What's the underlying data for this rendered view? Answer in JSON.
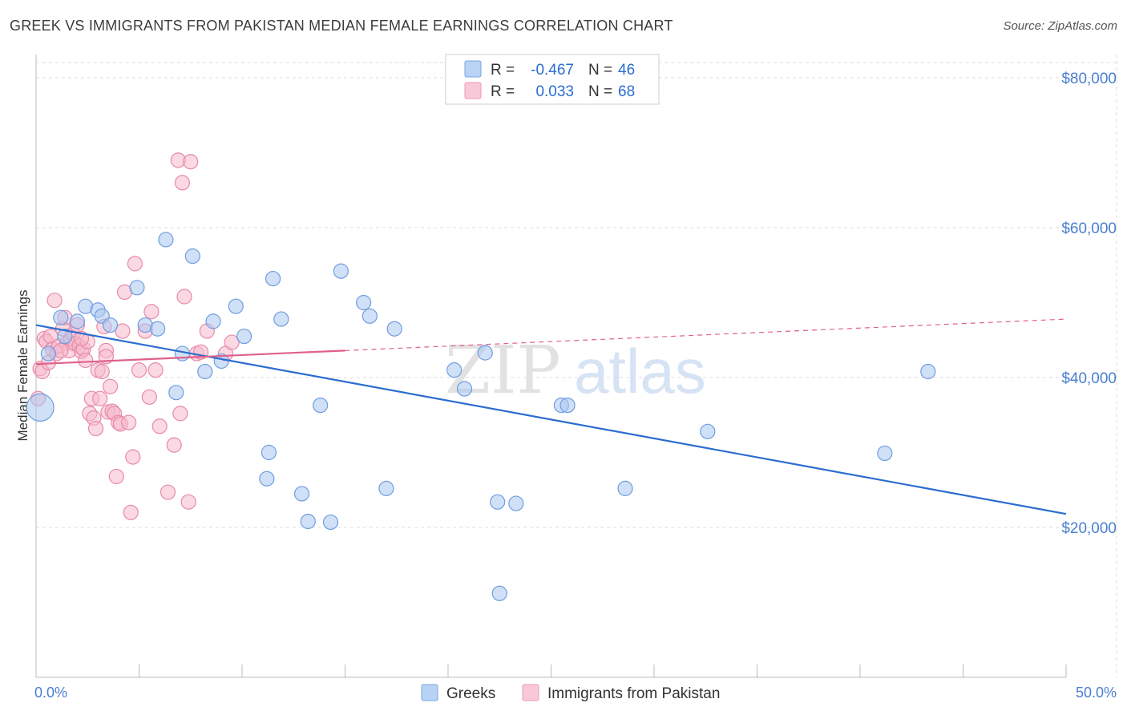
{
  "title": "GREEK VS IMMIGRANTS FROM PAKISTAN MEDIAN FEMALE EARNINGS CORRELATION CHART",
  "source": "Source: ZipAtlas.com",
  "watermark": {
    "zip": "ZIP",
    "atlas": "atlas"
  },
  "colors": {
    "greeks_fill": "#a9c7f0",
    "greeks_stroke": "#6f9de0",
    "greeks_line": "#2a6dd0",
    "pak_fill": "#f5b9cc",
    "pak_stroke": "#e88aa8",
    "pak_line": "#e0608c",
    "axis_label": "#4a7fd0",
    "grid": "#dddddd"
  },
  "legend": {
    "rows": [
      {
        "r_label": "R =",
        "r_value": "-0.467",
        "n_label": "N =",
        "n_value": "46"
      },
      {
        "r_label": "R =",
        "r_value": "0.033",
        "n_label": "N =",
        "n_value": "68"
      }
    ]
  },
  "bottom_legend": {
    "greeks": "Greeks",
    "pakistan": "Immigrants from Pakistan"
  },
  "chart_data": {
    "type": "scatter",
    "xlabel": "",
    "ylabel": "Median Female Earnings",
    "x_tick_labels": [
      "0.0%",
      "50.0%"
    ],
    "y_tick_labels": [
      "$80,000",
      "$60,000",
      "$40,000",
      "$20,000"
    ],
    "xlim": [
      0,
      50
    ],
    "ylim": [
      0,
      82000
    ],
    "y_ticks": [
      80000,
      60000,
      40000,
      20000
    ],
    "grid": true,
    "series": [
      {
        "name": "Greeks",
        "trend": {
          "x": [
            0,
            50
          ],
          "y": [
            47000,
            21800
          ],
          "dashed_from": null
        },
        "points": [
          [
            0.2,
            36000,
            "large"
          ],
          [
            0.6,
            43200
          ],
          [
            1.2,
            48000
          ],
          [
            1.4,
            45500
          ],
          [
            2.0,
            47500
          ],
          [
            2.4,
            49500
          ],
          [
            3.0,
            49000
          ],
          [
            3.2,
            48200
          ],
          [
            3.6,
            47000
          ],
          [
            4.9,
            52000
          ],
          [
            5.3,
            47000
          ],
          [
            5.9,
            46500
          ],
          [
            6.3,
            58400
          ],
          [
            6.8,
            38000
          ],
          [
            7.1,
            43200
          ],
          [
            7.6,
            56200
          ],
          [
            8.2,
            40800
          ],
          [
            8.6,
            47500
          ],
          [
            9.0,
            42200
          ],
          [
            9.7,
            49500
          ],
          [
            10.1,
            45500
          ],
          [
            11.2,
            26500
          ],
          [
            11.3,
            30000
          ],
          [
            11.5,
            53200
          ],
          [
            11.9,
            47800
          ],
          [
            12.9,
            24500
          ],
          [
            13.2,
            20800
          ],
          [
            13.8,
            36300
          ],
          [
            14.3,
            20700
          ],
          [
            14.8,
            54200
          ],
          [
            15.9,
            50000
          ],
          [
            16.2,
            48200
          ],
          [
            17.0,
            25200
          ],
          [
            17.4,
            46500
          ],
          [
            20.3,
            41000
          ],
          [
            20.8,
            38500
          ],
          [
            21.8,
            43300
          ],
          [
            22.4,
            23400
          ],
          [
            22.5,
            11200
          ],
          [
            23.3,
            23200
          ],
          [
            25.5,
            36300
          ],
          [
            25.8,
            36300
          ],
          [
            28.6,
            25200
          ],
          [
            32.6,
            32800
          ],
          [
            41.2,
            29900
          ],
          [
            43.3,
            40800
          ]
        ]
      },
      {
        "name": "Immigrants from Pakistan",
        "trend": {
          "x": [
            0,
            50
          ],
          "y": [
            41800,
            47800
          ],
          "dashed_from": 15
        },
        "points": [
          [
            0.1,
            37200
          ],
          [
            0.2,
            41200
          ],
          [
            0.3,
            40800
          ],
          [
            0.4,
            45200
          ],
          [
            0.5,
            44800
          ],
          [
            0.6,
            42000
          ],
          [
            0.7,
            45500
          ],
          [
            0.8,
            43800
          ],
          [
            1.0,
            43200
          ],
          [
            1.1,
            44200
          ],
          [
            1.3,
            46500
          ],
          [
            1.4,
            48000
          ],
          [
            1.5,
            44600
          ],
          [
            1.6,
            43600
          ],
          [
            1.7,
            45200
          ],
          [
            1.8,
            45800
          ],
          [
            1.9,
            44500
          ],
          [
            2.0,
            47000
          ],
          [
            2.1,
            44200
          ],
          [
            2.2,
            43500
          ],
          [
            2.3,
            43800
          ],
          [
            2.4,
            42300
          ],
          [
            2.5,
            44800
          ],
          [
            2.6,
            35200
          ],
          [
            2.7,
            37200
          ],
          [
            2.8,
            34600
          ],
          [
            2.9,
            33200
          ],
          [
            3.0,
            41000
          ],
          [
            3.1,
            37200
          ],
          [
            3.2,
            40800
          ],
          [
            3.3,
            46800
          ],
          [
            3.4,
            43600
          ],
          [
            3.5,
            35400
          ],
          [
            3.6,
            38800
          ],
          [
            3.7,
            35500
          ],
          [
            3.8,
            35200
          ],
          [
            3.9,
            26800
          ],
          [
            4.0,
            34000
          ],
          [
            4.1,
            33800
          ],
          [
            4.2,
            46200
          ],
          [
            4.3,
            51400
          ],
          [
            4.5,
            34000
          ],
          [
            4.6,
            22000
          ],
          [
            4.7,
            29400
          ],
          [
            4.8,
            55200
          ],
          [
            5.0,
            41000
          ],
          [
            5.3,
            46200
          ],
          [
            5.5,
            37400
          ],
          [
            5.6,
            48800
          ],
          [
            5.8,
            41000
          ],
          [
            6.0,
            33500
          ],
          [
            6.4,
            24700
          ],
          [
            6.7,
            31000
          ],
          [
            6.9,
            69000
          ],
          [
            7.0,
            35200
          ],
          [
            7.1,
            66000
          ],
          [
            7.2,
            50800
          ],
          [
            7.4,
            23400
          ],
          [
            7.5,
            68800
          ],
          [
            7.8,
            43200
          ],
          [
            8.0,
            43400
          ],
          [
            8.3,
            46200
          ],
          [
            9.2,
            43200
          ],
          [
            9.5,
            44700
          ],
          [
            2.2,
            45200
          ],
          [
            0.9,
            50300
          ],
          [
            1.2,
            43600
          ],
          [
            3.4,
            42800
          ]
        ]
      }
    ]
  }
}
